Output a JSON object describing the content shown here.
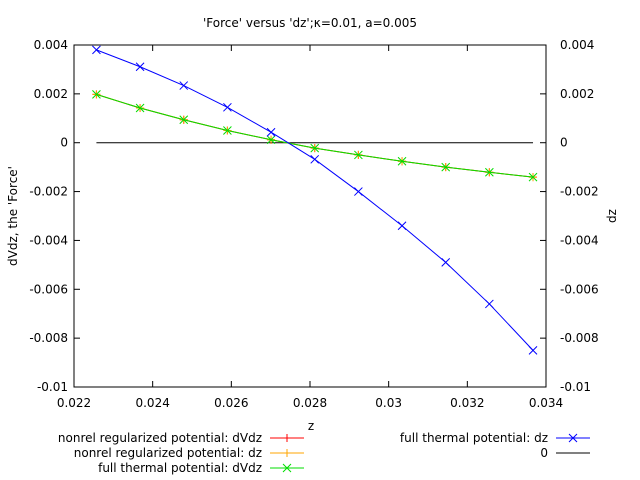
{
  "chart_data": {
    "type": "line",
    "title": "'Force' versus 'dz';κ=0.01, a=0.005",
    "xlabel": "z",
    "ylabel": "dVdz, the 'Force'",
    "y2label": "dz",
    "xlim": [
      0.022,
      0.034
    ],
    "ylim": [
      -0.01,
      0.004
    ],
    "y2lim": [
      -0.01,
      0.004
    ],
    "xticks": [
      0.022,
      0.024,
      0.026,
      0.028,
      0.03,
      0.032,
      0.034
    ],
    "xtick_labels": [
      "0.022",
      "0.024",
      "0.026",
      "0.028",
      "0.03",
      "0.032",
      "0.034"
    ],
    "yticks": [
      0.004,
      0.002,
      0,
      -0.002,
      -0.004,
      -0.006,
      -0.008,
      -0.01
    ],
    "ytick_labels": [
      "0.004",
      "0.002",
      "0",
      "-0.002",
      "-0.004",
      "-0.006",
      "-0.008",
      "-0.01"
    ],
    "y2ticks": [
      0.004,
      0.002,
      0,
      -0.002,
      -0.004,
      -0.006,
      -0.008,
      -0.01
    ],
    "y2tick_labels": [
      "0.004",
      "0.002",
      "0",
      "-0.002",
      "-0.004",
      "-0.006",
      "-0.008",
      "-0.01"
    ],
    "grid": false,
    "legend_position": "bottom",
    "series": [
      {
        "name": "nonrel regularized potential: dVdz",
        "color": "#ff0000",
        "marker": "plus",
        "x": [
          0.02257,
          0.02368,
          0.02479,
          0.0259,
          0.02701,
          0.02812,
          0.02923,
          0.03034,
          0.03145,
          0.03256,
          0.03367
        ],
        "y": [
          0.00198,
          0.00142,
          0.00094,
          0.0005,
          0.00012,
          -0.00022,
          -0.0005,
          -0.00076,
          -0.001,
          -0.00121,
          -0.00141
        ]
      },
      {
        "name": "nonrel regularized potential: dz",
        "color": "#ffa500",
        "marker": "plus",
        "x": [
          0.02257,
          0.02368,
          0.02479,
          0.0259,
          0.02701,
          0.02812,
          0.02923,
          0.03034,
          0.03145,
          0.03256,
          0.03367
        ],
        "y": [
          0.00198,
          0.00142,
          0.00094,
          0.0005,
          0.00012,
          -0.00022,
          -0.0005,
          -0.00076,
          -0.001,
          -0.00121,
          -0.00141
        ]
      },
      {
        "name": "full thermal potential: dVdz",
        "color": "#00dd00",
        "marker": "cross",
        "x": [
          0.02257,
          0.02368,
          0.02479,
          0.0259,
          0.02701,
          0.02812,
          0.02923,
          0.03034,
          0.03145,
          0.03256,
          0.03367
        ],
        "y": [
          0.00198,
          0.00142,
          0.00094,
          0.0005,
          0.00012,
          -0.00022,
          -0.0005,
          -0.00076,
          -0.001,
          -0.00121,
          -0.00141
        ]
      },
      {
        "name": "full thermal potential: dz",
        "color": "#0000ff",
        "marker": "cross",
        "x": [
          0.02257,
          0.02368,
          0.02479,
          0.0259,
          0.02701,
          0.02812,
          0.02923,
          0.03034,
          0.03145,
          0.03256,
          0.03367
        ],
        "y": [
          0.0038,
          0.00311,
          0.00234,
          0.00145,
          0.00043,
          -0.00068,
          -0.002,
          -0.0034,
          -0.0049,
          -0.0066,
          -0.0085
        ]
      },
      {
        "name": "0",
        "color": "#000000",
        "marker": "none",
        "x": [
          0.02257,
          0.03367
        ],
        "y": [
          0,
          0
        ]
      }
    ]
  }
}
